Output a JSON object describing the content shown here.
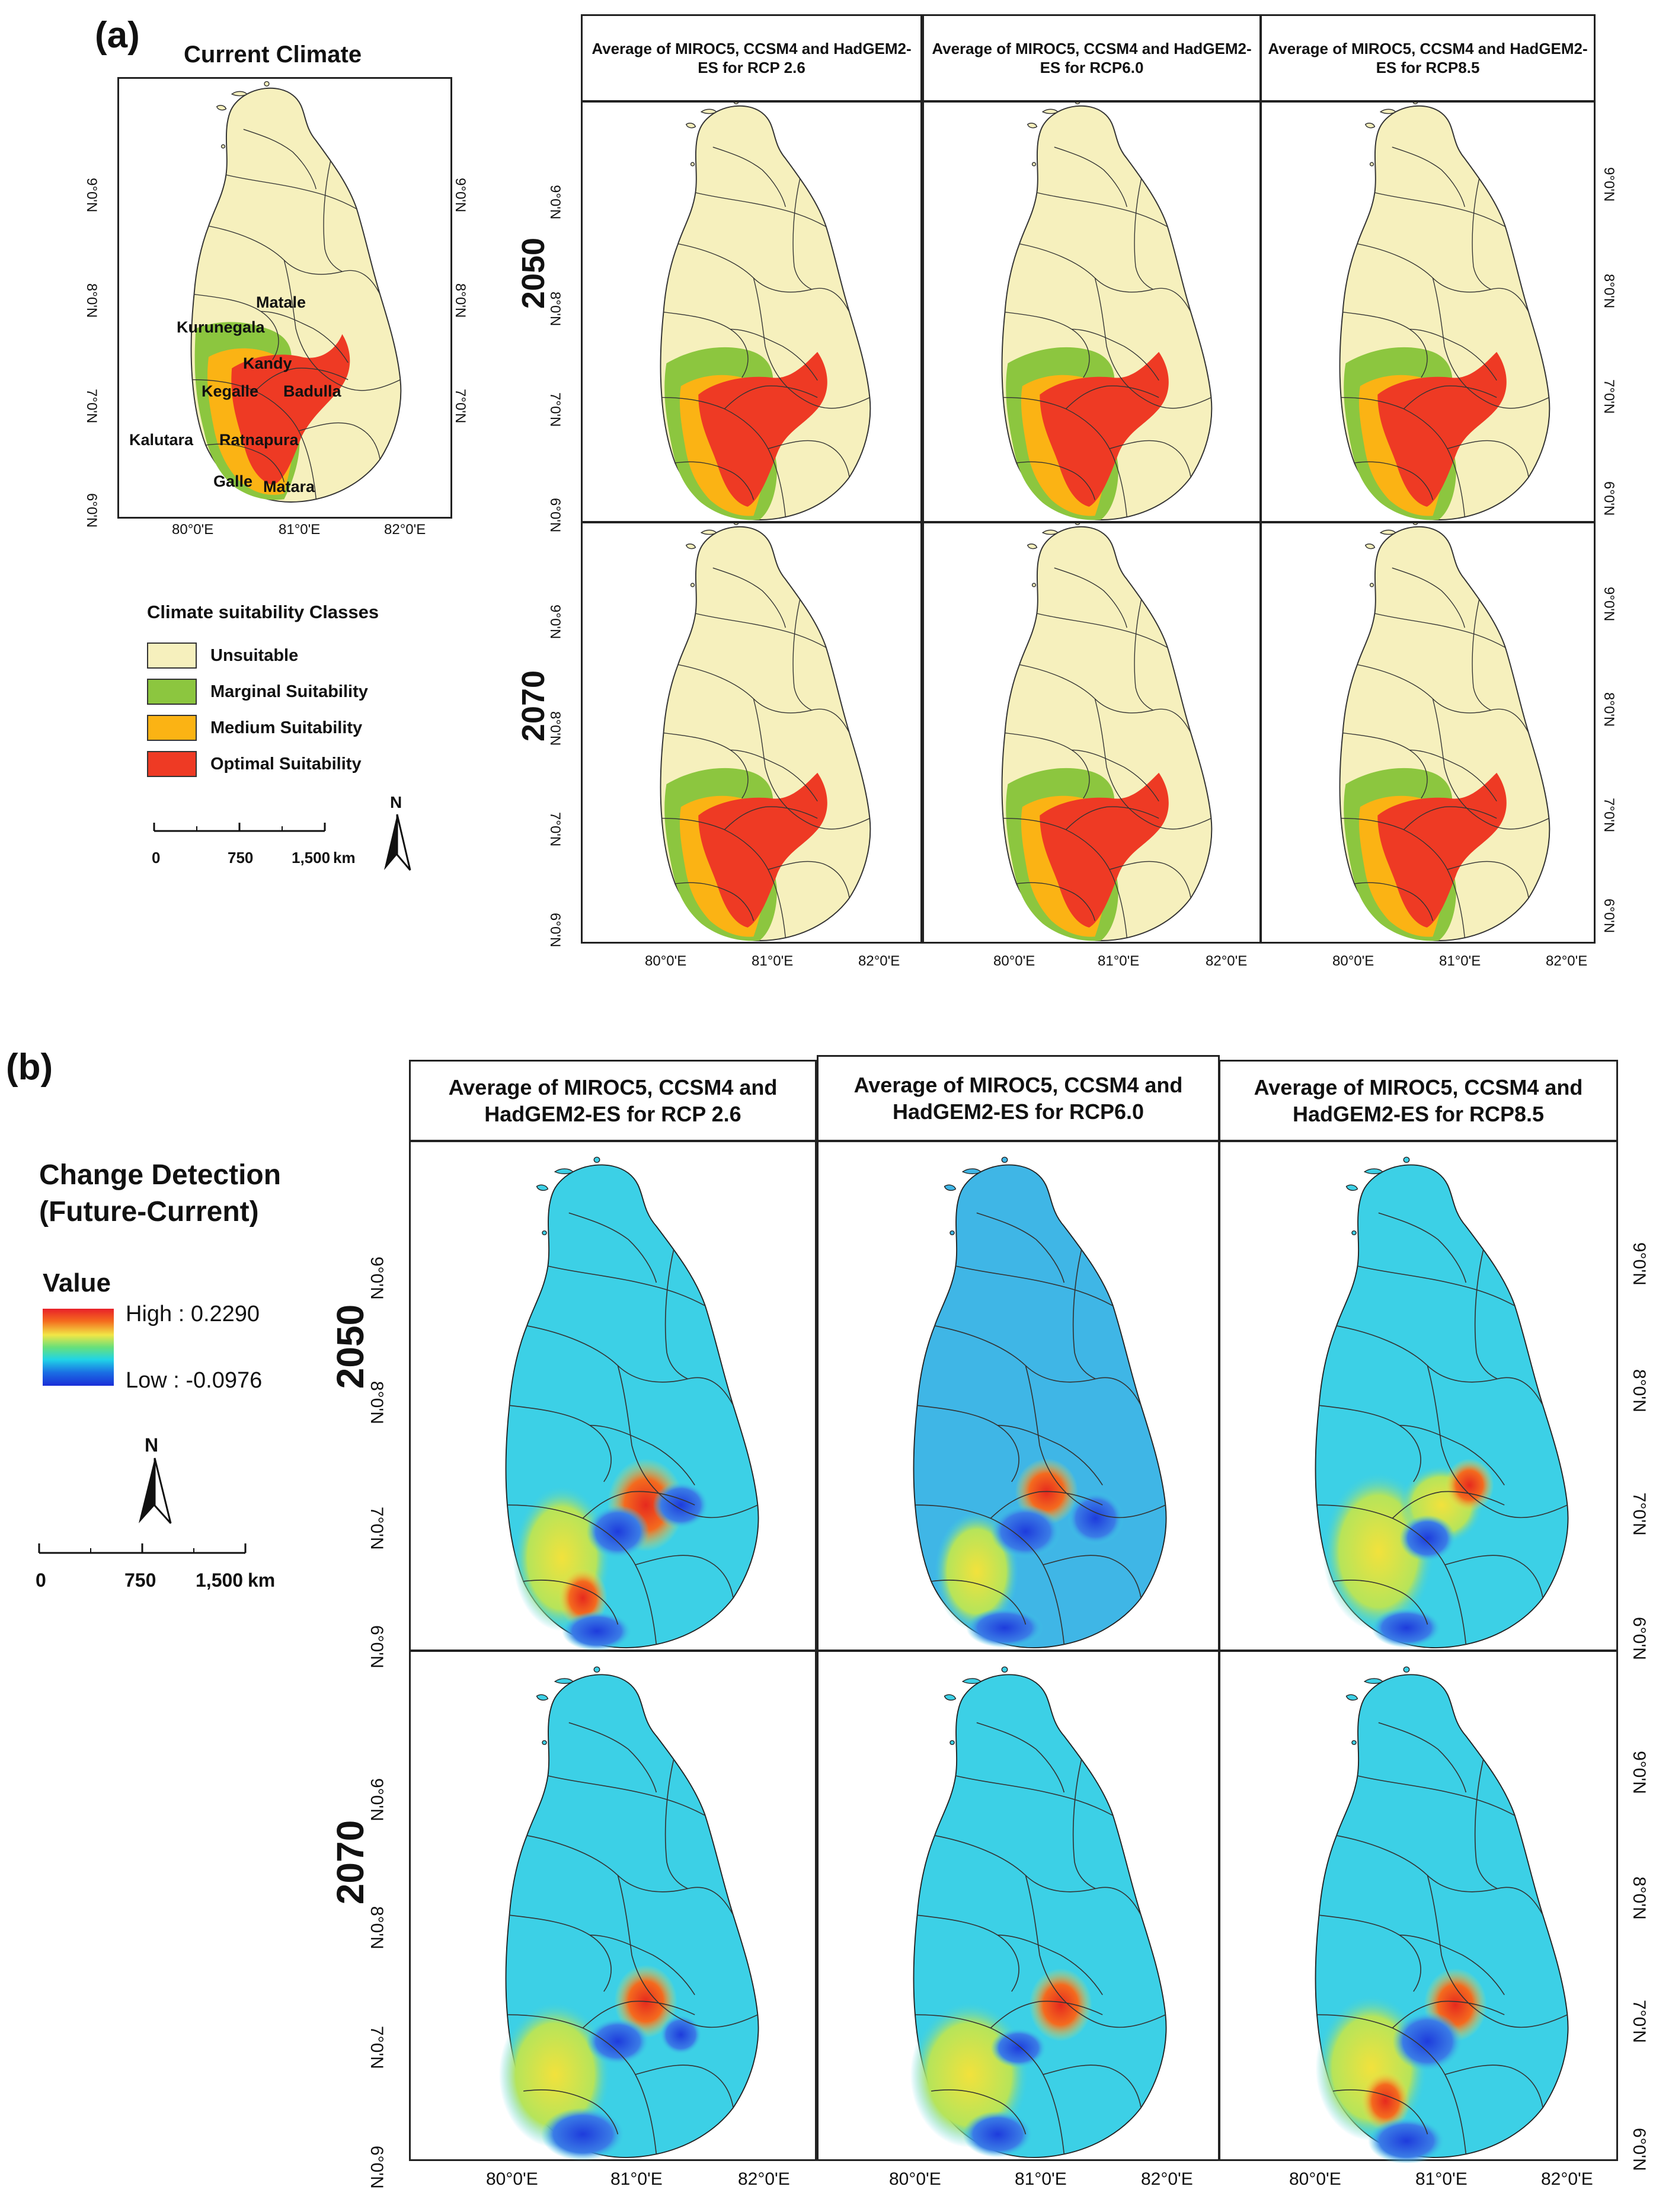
{
  "panel_a": {
    "label": "(a)",
    "current_title": "Current Climate",
    "headers": [
      "Average of MIROC5, CCSM4 and HadGEM2-ES for RCP 2.6",
      "Average of MIROC5, CCSM4 and HadGEM2-ES for RCP6.0",
      "Average of MIROC5, CCSM4 and HadGEM2-ES for RCP8.5"
    ],
    "years": [
      "2050",
      "2070"
    ],
    "lat_ticks": [
      "9°0'N",
      "8°0'N",
      "7°0'N",
      "6°0'N"
    ],
    "lon_ticks": [
      "80°0'E",
      "81°0'E",
      "82°0'E"
    ],
    "districts": [
      "Matale",
      "Kurunegala",
      "Kandy",
      "Kegalle",
      "Badulla",
      "Kalutara",
      "Ratnapura",
      "Galle",
      "Matara"
    ],
    "legend": {
      "title": "Climate suitability Classes",
      "classes": [
        {
          "label": "Unsuitable",
          "color": "#f6f0bd"
        },
        {
          "label": "Marginal Suitability",
          "color": "#8cc63f"
        },
        {
          "label": "Medium Suitability",
          "color": "#fbb314"
        },
        {
          "label": "Optimal Suitability",
          "color": "#ee3a24"
        }
      ]
    },
    "scale": {
      "ticks": [
        "0",
        "750",
        "1,500"
      ],
      "unit": "km"
    },
    "north": "N"
  },
  "panel_b": {
    "label": "(b)",
    "headers": [
      "Average of MIROC5, CCSM4 and HadGEM2-ES for RCP 2.6",
      "Average of MIROC5, CCSM4 and HadGEM2-ES for RCP6.0",
      "Average of MIROC5, CCSM4 and HadGEM2-ES for RCP8.5"
    ],
    "years": [
      "2050",
      "2070"
    ],
    "lat_ticks": [
      "9°0'N",
      "8°0'N",
      "7°0'N",
      "6°0'N"
    ],
    "lon_ticks": [
      "80°0'E",
      "81°0'E",
      "82°0'E"
    ],
    "legend": {
      "title_line1": "Change Detection",
      "title_line2": "(Future-Current)",
      "value_title": "Value",
      "high": "High : 0.2290",
      "low": "Low : -0.0976"
    },
    "scale": {
      "ticks": [
        "0",
        "750",
        "1,500"
      ],
      "unit": "km"
    },
    "north": "N"
  },
  "colors": {
    "unsuitable": "#f6f0bd",
    "marginal": "#8cc63f",
    "medium": "#fbb314",
    "optimal": "#ee3a24",
    "change_base": "#3cd0e6",
    "change_base_60": "#3fb6e6",
    "change_yellow": "#f0e64a",
    "change_red": "#e62a1e",
    "change_blue": "#1e3cdc"
  }
}
